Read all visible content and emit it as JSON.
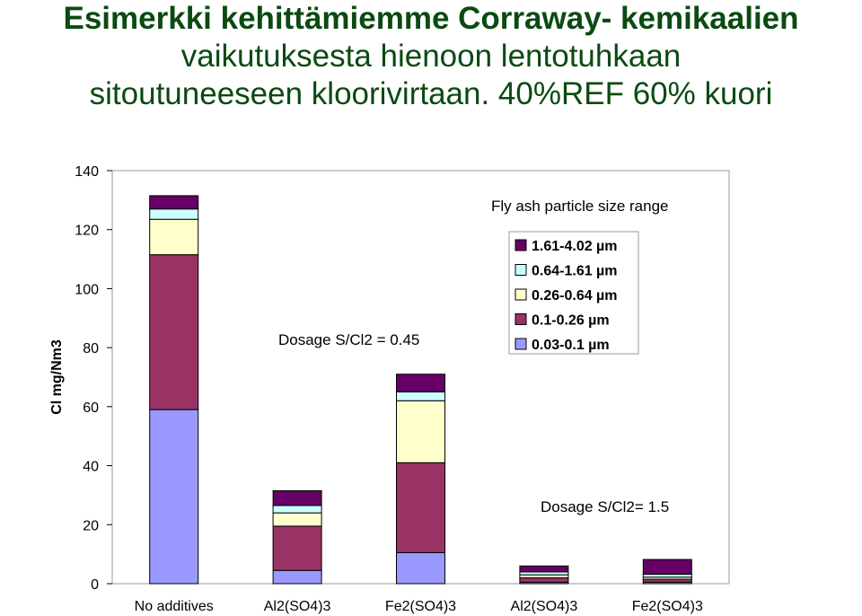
{
  "title": {
    "line1": "Esimerkki  kehittämiemme  Corraway- kemikaalien",
    "line2": "vaikutuksesta hienoon lentotuhkaan",
    "line3": "sitoutuneeseen kloorivirtaan. 40%REF 60% kuori"
  },
  "chart_data": {
    "type": "bar",
    "stacked": true,
    "categories": [
      "No additives",
      "Al2(SO4)3",
      "Fe2(SO4)3",
      "Al2(SO4)3",
      "Fe2(SO4)3"
    ],
    "ylabel": "Cl mg/Nm3",
    "ylim": [
      0,
      140
    ],
    "yticks": [
      0,
      20,
      40,
      60,
      80,
      100,
      120,
      140
    ],
    "grid": false,
    "legend": {
      "title": "Fly ash particle size range",
      "placement": "top-right"
    },
    "series": [
      {
        "name": "0.03-0.1 µm",
        "color": "#9999ff",
        "values": [
          59,
          4.5,
          10.5,
          0.5,
          0.5
        ]
      },
      {
        "name": "0.1-0.26 µm",
        "color": "#993366",
        "values": [
          52.5,
          15,
          30.5,
          1.5,
          1
        ]
      },
      {
        "name": "0.26-0.64 µm",
        "color": "#ffffcc",
        "values": [
          12,
          4.5,
          21,
          1,
          0.7
        ]
      },
      {
        "name": "0.64-1.61 µm",
        "color": "#ccffff",
        "values": [
          3.5,
          2.5,
          3,
          1,
          1
        ]
      },
      {
        "name": "1.61-4.02 µm",
        "color": "#660066",
        "values": [
          4.5,
          5,
          6,
          2,
          5
        ]
      }
    ],
    "annotations": [
      "Dosage S/Cl2 = 0.45",
      "Dosage S/Cl2= 1.5"
    ]
  }
}
